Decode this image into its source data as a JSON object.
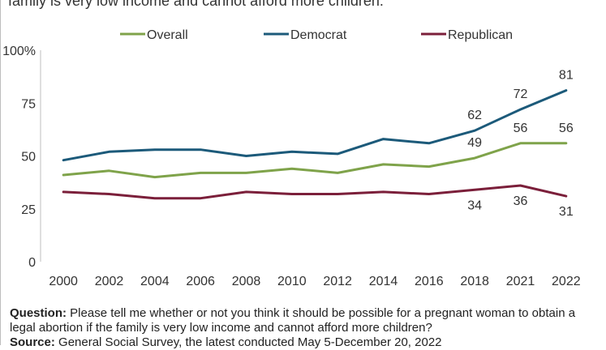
{
  "header": {
    "title_fragment": "family is very low income and cannot afford more children."
  },
  "chart_data": {
    "type": "line",
    "x": [
      "2000",
      "2002",
      "2004",
      "2006",
      "2008",
      "2010",
      "2012",
      "2014",
      "2016",
      "2018",
      "2021",
      "2022"
    ],
    "series": [
      {
        "name": "Overall",
        "color": "#7fa34a",
        "values": [
          41,
          43,
          40,
          42,
          42,
          44,
          42,
          46,
          45,
          49,
          56,
          56
        ]
      },
      {
        "name": "Democrat",
        "color": "#1c5a7a",
        "values": [
          48,
          52,
          53,
          53,
          50,
          52,
          51,
          58,
          56,
          62,
          72,
          81
        ]
      },
      {
        "name": "Republican",
        "color": "#7b1f3a",
        "values": [
          33,
          32,
          30,
          30,
          33,
          32,
          32,
          33,
          32,
          34,
          36,
          31
        ]
      }
    ],
    "ylim": [
      0,
      100
    ],
    "yticks": [
      "0",
      "25",
      "50",
      "75",
      "100%"
    ],
    "data_labels": [
      {
        "series": 1,
        "index": 9,
        "text": "62",
        "pos": "above"
      },
      {
        "series": 1,
        "index": 10,
        "text": "72",
        "pos": "above"
      },
      {
        "series": 1,
        "index": 11,
        "text": "81",
        "pos": "above"
      },
      {
        "series": 0,
        "index": 9,
        "text": "49",
        "pos": "above"
      },
      {
        "series": 0,
        "index": 10,
        "text": "56",
        "pos": "above"
      },
      {
        "series": 0,
        "index": 11,
        "text": "56",
        "pos": "above"
      },
      {
        "series": 2,
        "index": 9,
        "text": "34",
        "pos": "below"
      },
      {
        "series": 2,
        "index": 10,
        "text": "36",
        "pos": "below"
      },
      {
        "series": 2,
        "index": 11,
        "text": "31",
        "pos": "below"
      }
    ],
    "legend_position": "top-center",
    "grid": false
  },
  "footer": {
    "question_label": "Question:",
    "question_text": " Please tell me whether or not you think it should be possible for a pregnant woman to obtain a legal abortion if the family is very low income and cannot afford more children?",
    "source_label": "Source:",
    "source_text": " General Social Survey, the latest conducted May 5-December 20, 2022"
  }
}
